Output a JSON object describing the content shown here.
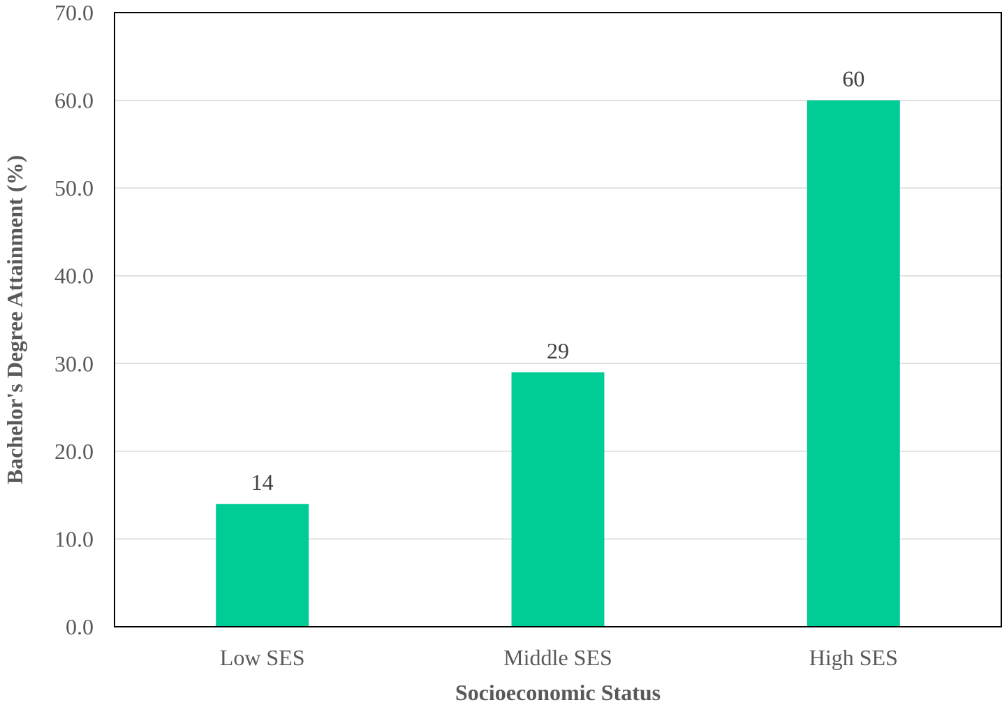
{
  "chart_data": {
    "type": "bar",
    "categories": [
      "Low SES",
      "Middle SES",
      "High SES"
    ],
    "values": [
      14,
      29,
      60
    ],
    "data_labels": [
      "14",
      "29",
      "60"
    ],
    "xlabel": "Socioeconomic Status",
    "ylabel": "Bachelor's Degree Attainment (%)",
    "ylim": [
      0,
      70
    ],
    "yticks": [
      0,
      10,
      20,
      30,
      40,
      50,
      60,
      70
    ],
    "ytick_labels": [
      "0.0",
      "10.0",
      "20.0",
      "30.0",
      "40.0",
      "50.0",
      "60.0",
      "70.0"
    ],
    "grid": "horizontal",
    "legend": "none",
    "colors": {
      "bar": "#00CC96",
      "grid": "#D9D9D9",
      "frame": "#000000"
    }
  }
}
